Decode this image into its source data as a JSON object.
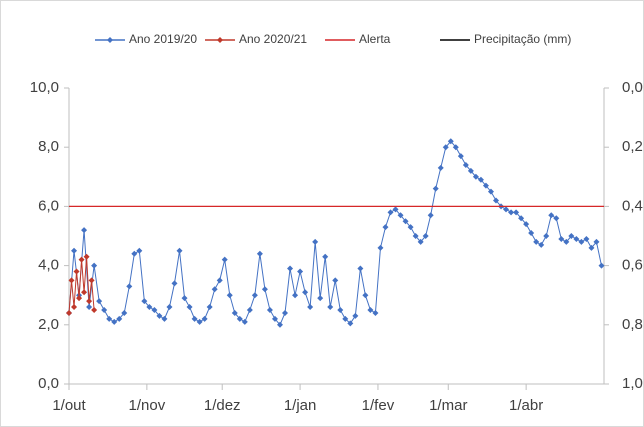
{
  "chart_data": {
    "type": "line",
    "xlim": [
      0,
      213
    ],
    "xticks": [
      {
        "value": 0,
        "label": "1/out"
      },
      {
        "value": 31,
        "label": "1/nov"
      },
      {
        "value": 61,
        "label": "1/dez"
      },
      {
        "value": 92,
        "label": "1/jan"
      },
      {
        "value": 123,
        "label": "1/fev"
      },
      {
        "value": 151,
        "label": "1/mar"
      },
      {
        "value": 182,
        "label": "1/abr"
      }
    ],
    "ylim": [
      0,
      10
    ],
    "yticks": [
      {
        "value": 0,
        "label": "0,0"
      },
      {
        "value": 2,
        "label": "2,0"
      },
      {
        "value": 4,
        "label": "4,0"
      },
      {
        "value": 6,
        "label": "6,0"
      },
      {
        "value": 8,
        "label": "8,0"
      },
      {
        "value": 10,
        "label": "10,0"
      }
    ],
    "y2lim": [
      1,
      0
    ],
    "y2ticks": [
      {
        "value": 0,
        "label": "0,0"
      },
      {
        "value": 0.2,
        "label": "0,2"
      },
      {
        "value": 0.4,
        "label": "0,4"
      },
      {
        "value": 0.6,
        "label": "0,6"
      },
      {
        "value": 0.8,
        "label": "0,8"
      },
      {
        "value": 1,
        "label": "1,0"
      }
    ],
    "series": [
      {
        "name": "Ano 2019/20",
        "color": "#4472c4",
        "markers": true,
        "x": [
          0,
          2,
          4,
          6,
          8,
          10,
          12,
          14,
          16,
          18,
          20,
          22,
          24,
          26,
          28,
          30,
          32,
          34,
          36,
          38,
          40,
          42,
          44,
          46,
          48,
          50,
          52,
          54,
          56,
          58,
          60,
          62,
          64,
          66,
          68,
          70,
          72,
          74,
          76,
          78,
          80,
          82,
          84,
          86,
          88,
          90,
          92,
          94,
          96,
          98,
          100,
          102,
          104,
          106,
          108,
          110,
          112,
          114,
          116,
          118,
          120,
          122,
          124,
          126,
          128,
          130,
          132,
          134,
          136,
          138,
          140,
          142,
          144,
          146,
          148,
          150,
          152,
          154,
          156,
          158,
          160,
          162,
          164,
          166,
          168,
          170,
          172,
          174,
          176,
          178,
          180,
          182,
          184,
          186,
          188,
          190,
          192,
          194,
          196,
          198,
          200,
          202,
          204,
          206,
          208,
          210,
          212
        ],
        "values": [
          2.4,
          4.5,
          3.0,
          5.2,
          2.6,
          4.0,
          2.8,
          2.5,
          2.2,
          2.1,
          2.2,
          2.4,
          3.3,
          4.4,
          4.5,
          2.8,
          2.6,
          2.5,
          2.3,
          2.2,
          2.6,
          3.4,
          4.5,
          2.9,
          2.6,
          2.2,
          2.1,
          2.2,
          2.6,
          3.2,
          3.5,
          4.2,
          3.0,
          2.4,
          2.2,
          2.1,
          2.5,
          3.0,
          4.4,
          3.2,
          2.5,
          2.2,
          2.0,
          2.4,
          3.9,
          3.0,
          3.8,
          3.1,
          2.6,
          4.8,
          2.9,
          4.3,
          2.6,
          3.5,
          2.5,
          2.2,
          2.05,
          2.3,
          3.9,
          3.0,
          2.5,
          2.4,
          4.6,
          5.3,
          5.8,
          5.9,
          5.7,
          5.5,
          5.3,
          5.0,
          4.8,
          5.0,
          5.7,
          6.6,
          7.3,
          8.0,
          8.2,
          8.0,
          7.7,
          7.4,
          7.2,
          7.0,
          6.9,
          6.7,
          6.5,
          6.2,
          6.0,
          5.9,
          5.8,
          5.8,
          5.6,
          5.4,
          5.1,
          4.8,
          4.7,
          5.0,
          5.7,
          5.6,
          4.9,
          4.8,
          5.0,
          4.9,
          4.8,
          4.9,
          4.6,
          4.8,
          4.0
        ]
      },
      {
        "name": "Ano 2020/21",
        "color": "#c0392b",
        "markers": true,
        "x": [
          0,
          1,
          2,
          3,
          4,
          5,
          6,
          7,
          8,
          9,
          10
        ],
        "values": [
          2.4,
          3.5,
          2.6,
          3.8,
          2.9,
          4.2,
          3.1,
          4.3,
          2.8,
          3.5,
          2.5
        ]
      },
      {
        "name": "Alerta",
        "color": "#d62728",
        "markers": false,
        "x": [
          0,
          213
        ],
        "values": [
          6,
          6
        ]
      },
      {
        "name": "Precipitação (mm)",
        "color": "#000000",
        "markers": false,
        "axis": "y2",
        "x": [],
        "values": []
      }
    ]
  }
}
